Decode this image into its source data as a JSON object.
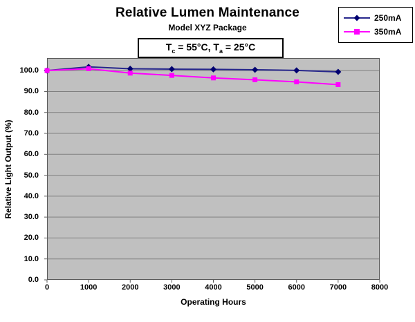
{
  "header": {
    "title": "Relative Lumen Maintenance",
    "subtitle": "Model XYZ Package"
  },
  "annotation": {
    "parts": {
      "t1": "T",
      "sub1": "c",
      "t2": " = 55°C, T",
      "sub2": "a",
      "t3": " = 25°C"
    },
    "full_text": "Tc = 55°C, Ta = 25°C"
  },
  "chart_data": {
    "type": "line",
    "title": "Relative Lumen Maintenance",
    "subtitle": "Model XYZ Package",
    "annotation": "Tc = 55°C, Ta = 25°C",
    "xlabel": "Operating Hours",
    "ylabel": "Relative Light Output (%)",
    "x": [
      0,
      1000,
      2000,
      3000,
      4000,
      5000,
      6000,
      7000
    ],
    "series": [
      {
        "name": "250mA",
        "color": "#26268c",
        "marker_color": "#000070",
        "marker": "diamond",
        "values": [
          100.0,
          101.8,
          100.9,
          100.7,
          100.6,
          100.4,
          100.1,
          99.4
        ]
      },
      {
        "name": "350mA",
        "color": "#ff00ff",
        "marker_color": "#ff00ff",
        "marker": "square",
        "values": [
          100.0,
          100.9,
          98.8,
          97.7,
          96.5,
          95.6,
          94.6,
          93.3
        ]
      }
    ],
    "xlim": [
      0,
      8000
    ],
    "ylim": [
      0,
      106
    ],
    "xticks": [
      0,
      1000,
      2000,
      3000,
      4000,
      5000,
      6000,
      7000,
      8000
    ],
    "xtick_labels": [
      "0",
      "1000",
      "2000",
      "3000",
      "4000",
      "5000",
      "6000",
      "7000",
      "8000"
    ],
    "yticks": [
      0,
      10,
      20,
      30,
      40,
      50,
      60,
      70,
      80,
      90,
      100
    ],
    "ytick_labels": [
      "0.0",
      "10.0",
      "20.0",
      "30.0",
      "40.0",
      "50.0",
      "60.0",
      "70.0",
      "80.0",
      "90.0",
      "100.0"
    ],
    "grid": true,
    "legend_position": "top-right",
    "colors": {
      "plot_background": "#c0c0c0",
      "gridline": "#7f7f7f",
      "axis": "#5a5a5a",
      "chart_background": "#ffffff"
    }
  }
}
